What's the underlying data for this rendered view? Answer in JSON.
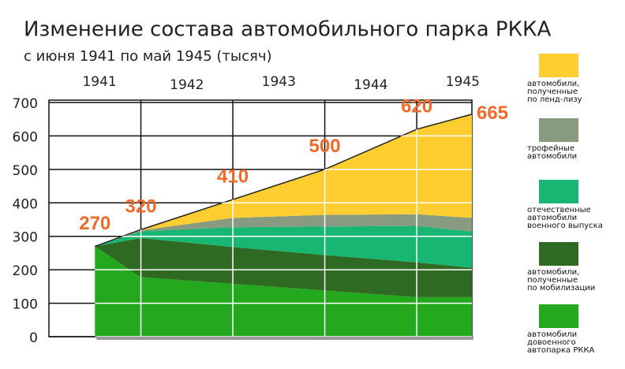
{
  "chart_data": {
    "type": "stacked_area",
    "title": "Изменение состава автомобильного парка РККА",
    "subtitle": "с июня 1941 по май 1945 (тысяч)",
    "x": [
      1941.5,
      1942,
      1943,
      1944,
      1945,
      1945.6
    ],
    "xlim": [
      1941,
      1945.6
    ],
    "xticks": [
      {
        "value": 1941.55,
        "label": "1941"
      },
      {
        "value": 1942.5,
        "label": "1942"
      },
      {
        "value": 1943.5,
        "label": "1943"
      },
      {
        "value": 1944.5,
        "label": "1944"
      },
      {
        "value": 1945.5,
        "label": "1945"
      }
    ],
    "xgrid": [
      1942,
      1943,
      1944,
      1945
    ],
    "ylim": [
      0,
      700
    ],
    "yticks": [
      0,
      100,
      200,
      300,
      400,
      500,
      600,
      700
    ],
    "grid": true,
    "series": [
      {
        "name": "автомобили\nдовоенного\nавтопарка РККА",
        "color": "#23a81e",
        "values": [
          270,
          178,
          158,
          138,
          118,
          118
        ]
      },
      {
        "name": "автомобили,\nполученные\nпо мобилизации",
        "color": "#2e6a21",
        "values": [
          0,
          117,
          110,
          106,
          104,
          88
        ]
      },
      {
        "name": "отечественные\nавтомобили\nвоенного выпуска",
        "color": "#17b672",
        "values": [
          0,
          20,
          59,
          85,
          109,
          108
        ]
      },
      {
        "name": "трофейные\nавтомобили",
        "color": "#889a7f",
        "values": [
          0,
          3,
          28,
          35,
          35,
          41
        ]
      },
      {
        "name": "автомобили,\nполученные\nпо ленд-лизу",
        "color": "#fecd2f",
        "values": [
          0,
          2,
          55,
          136,
          254,
          310
        ]
      }
    ],
    "totals": [
      270,
      320,
      410,
      500,
      620,
      665
    ],
    "label_color": "#ef6b2b",
    "legend": "right"
  }
}
